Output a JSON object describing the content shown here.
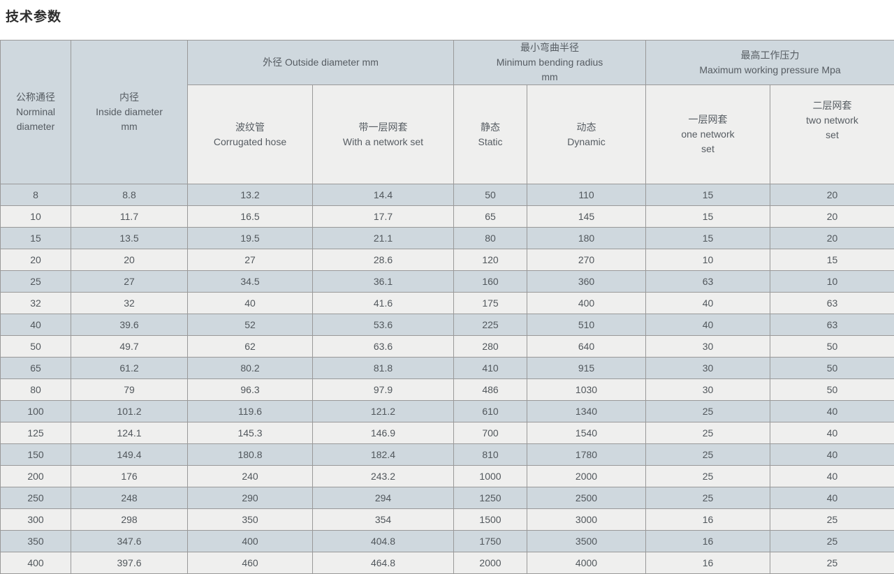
{
  "page": {
    "title": "技术参数"
  },
  "colors": {
    "header_bg": "#cfd8de",
    "row_dark_bg": "#cfd8de",
    "row_light_bg": "#efefee",
    "border": "#999999",
    "header_text": "#565c62",
    "cell_text": "#51575c",
    "title_text": "#2d2d2d"
  },
  "table": {
    "header": {
      "nominal_diameter": "公称通径\nNorminal\ndiameter",
      "inside_diameter": "内径\nInside diameter\nmm",
      "group_outside_diameter": "外径 Outside diameter mm",
      "group_min_bending_radius": "最小弯曲半径\nMinimum bending radius\nmm",
      "group_max_working_pressure": "最高工作压力\nMaximum working pressure Mpa",
      "corrugated_hose": "波纹管\nCorrugated hose",
      "with_network_set": "带一层网套\nWith a network set",
      "static": "静态\nStatic",
      "dynamic": "动态\nDynamic",
      "one_network_set": "一层网套\none network\nset",
      "two_network_set": "二层网套\ntwo network\nset"
    },
    "rows": [
      [
        "8",
        "8.8",
        "13.2",
        "14.4",
        "50",
        "110",
        "15",
        "20"
      ],
      [
        "10",
        "11.7",
        "16.5",
        "17.7",
        "65",
        "145",
        "15",
        "20"
      ],
      [
        "15",
        "13.5",
        "19.5",
        "21.1",
        "80",
        "180",
        "15",
        "20"
      ],
      [
        "20",
        "20",
        "27",
        "28.6",
        "120",
        "270",
        "10",
        "15"
      ],
      [
        "25",
        "27",
        "34.5",
        "36.1",
        "160",
        "360",
        "63",
        "10"
      ],
      [
        "32",
        "32",
        "40",
        "41.6",
        "175",
        "400",
        "40",
        "63"
      ],
      [
        "40",
        "39.6",
        "52",
        "53.6",
        "225",
        "510",
        "40",
        "63"
      ],
      [
        "50",
        "49.7",
        "62",
        "63.6",
        "280",
        "640",
        "30",
        "50"
      ],
      [
        "65",
        "61.2",
        "80.2",
        "81.8",
        "410",
        "915",
        "30",
        "50"
      ],
      [
        "80",
        "79",
        "96.3",
        "97.9",
        "486",
        "1030",
        "30",
        "50"
      ],
      [
        "100",
        "101.2",
        "119.6",
        "121.2",
        "610",
        "1340",
        "25",
        "40"
      ],
      [
        "125",
        "124.1",
        "145.3",
        "146.9",
        "700",
        "1540",
        "25",
        "40"
      ],
      [
        "150",
        "149.4",
        "180.8",
        "182.4",
        "810",
        "1780",
        "25",
        "40"
      ],
      [
        "200",
        "176",
        "240",
        "243.2",
        "1000",
        "2000",
        "25",
        "40"
      ],
      [
        "250",
        "248",
        "290",
        "294",
        "1250",
        "2500",
        "25",
        "40"
      ],
      [
        "300",
        "298",
        "350",
        "354",
        "1500",
        "3000",
        "16",
        "25"
      ],
      [
        "350",
        "347.6",
        "400",
        "404.8",
        "1750",
        "3500",
        "16",
        "25"
      ],
      [
        "400",
        "397.6",
        "460",
        "464.8",
        "2000",
        "4000",
        "16",
        "25"
      ]
    ]
  }
}
